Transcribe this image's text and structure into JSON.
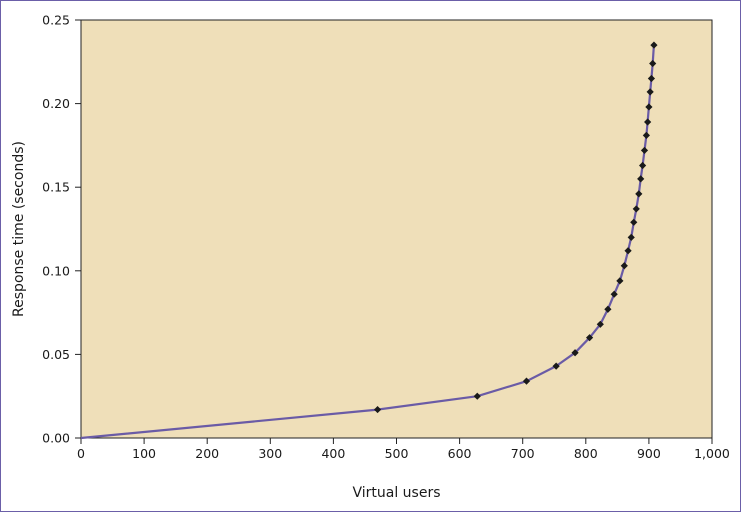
{
  "chart_data": {
    "type": "line",
    "title": "",
    "xlabel": "Virtual users",
    "ylabel": "Response time (seconds)",
    "xlim": [
      0,
      1000
    ],
    "ylim": [
      0,
      0.25
    ],
    "x_ticks": [
      0,
      100,
      200,
      300,
      400,
      500,
      600,
      700,
      800,
      900,
      1000
    ],
    "x_tick_labels": [
      "0",
      "100",
      "200",
      "300",
      "400",
      "500",
      "600",
      "700",
      "800",
      "900",
      "1,000"
    ],
    "y_ticks": [
      0,
      0.05,
      0.1,
      0.15,
      0.2,
      0.25
    ],
    "y_tick_labels": [
      "0.00",
      "0.05",
      "0.10",
      "0.15",
      "0.20",
      "0.25"
    ],
    "grid": false,
    "legend": "none",
    "colors": {
      "plot_background": "#efdfb9",
      "line": "#6a5ba6",
      "marker": "#1a1a1a",
      "frame": "#6b5fa8"
    },
    "series": [
      {
        "x": [
          0,
          470,
          628,
          706,
          753,
          783,
          806,
          823,
          835,
          845,
          854,
          861,
          867,
          872,
          876,
          880,
          884,
          887,
          890,
          893,
          896,
          898,
          900,
          902,
          904,
          906,
          908
        ],
        "y": [
          0.0,
          0.017,
          0.025,
          0.034,
          0.043,
          0.051,
          0.06,
          0.068,
          0.077,
          0.086,
          0.094,
          0.103,
          0.112,
          0.12,
          0.129,
          0.137,
          0.146,
          0.155,
          0.163,
          0.172,
          0.181,
          0.189,
          0.198,
          0.207,
          0.215,
          0.224,
          0.235
        ]
      }
    ]
  }
}
